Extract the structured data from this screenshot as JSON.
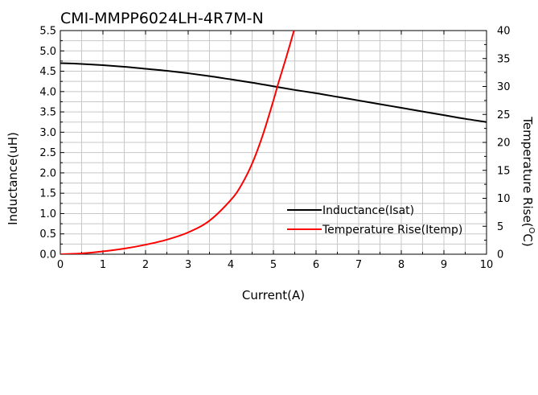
{
  "chart_data": {
    "type": "line",
    "title": "CMI-MMPP6024LH-4R7M-N",
    "xlabel": "Current(A)",
    "ylabel": "Inductance(uH)",
    "y2label_main": "Temperature Rise(",
    "y2label_sup": "O",
    "y2label_end": "C)",
    "xlim": [
      0,
      10
    ],
    "ylim": [
      0,
      5.5
    ],
    "y2lim": [
      0,
      40
    ],
    "xticks": [
      "0",
      "1",
      "2",
      "3",
      "4",
      "5",
      "6",
      "7",
      "8",
      "9",
      "10"
    ],
    "yticks": [
      "0.0",
      "0.5",
      "1.0",
      "1.5",
      "2.0",
      "2.5",
      "3.0",
      "3.5",
      "4.0",
      "4.5",
      "5.0",
      "5.5"
    ],
    "y2ticks": [
      "0",
      "5",
      "10",
      "15",
      "20",
      "25",
      "30",
      "35",
      "40"
    ],
    "grid": true,
    "legend_position": "bottom-right",
    "series": [
      {
        "name": "Inductance(Isat)",
        "axis": "left",
        "color": "#000000",
        "x": [
          0,
          0.5,
          1,
          1.5,
          2,
          2.5,
          3,
          3.5,
          4,
          4.5,
          5,
          5.5,
          6,
          6.5,
          7,
          7.5,
          8,
          8.5,
          9,
          9.5,
          10
        ],
        "y": [
          4.7,
          4.68,
          4.65,
          4.61,
          4.56,
          4.51,
          4.45,
          4.38,
          4.3,
          4.22,
          4.13,
          4.04,
          3.96,
          3.87,
          3.78,
          3.69,
          3.6,
          3.51,
          3.42,
          3.33,
          3.25
        ]
      },
      {
        "name": "Temperature Rise(Itemp)",
        "axis": "right",
        "color": "#ff0000",
        "x": [
          0,
          0.5,
          1,
          1.5,
          2,
          2.5,
          3,
          3.5,
          4,
          4.25,
          4.5,
          4.75,
          5,
          5.1,
          5.2,
          5.3,
          5.4,
          5.5
        ],
        "y": [
          0,
          0.15,
          0.5,
          1.0,
          1.7,
          2.6,
          3.9,
          6.0,
          9.7,
          12.4,
          16.2,
          21.3,
          27.5,
          30.2,
          32.7,
          35.2,
          37.8,
          40.5
        ]
      }
    ]
  }
}
